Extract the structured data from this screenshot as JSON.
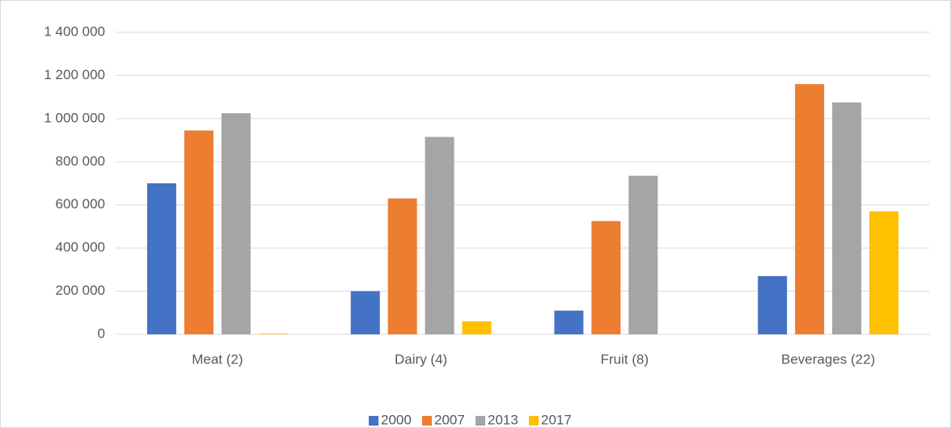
{
  "chart_data": {
    "type": "bar",
    "categories": [
      "Meat (2)",
      "Dairy (4)",
      "Fruit (8)",
      "Beverages (22)"
    ],
    "series": [
      {
        "name": "2000",
        "color": "#4472c4",
        "values": [
          700000,
          200000,
          110000,
          270000
        ]
      },
      {
        "name": "2007",
        "color": "#ed7d31",
        "values": [
          945000,
          630000,
          525000,
          1160000
        ]
      },
      {
        "name": "2013",
        "color": "#a5a5a5",
        "values": [
          1025000,
          915000,
          735000,
          1075000
        ]
      },
      {
        "name": "2017",
        "color": "#ffc000",
        "values": [
          3000,
          60000,
          0,
          570000
        ]
      }
    ],
    "ylim": [
      0,
      1400000
    ],
    "yticks": [
      0,
      {
        "value": 200000,
        "label": "200 000"
      },
      {
        "value": 400000,
        "label": "400 000"
      },
      {
        "value": 600000,
        "label": "600 000"
      },
      {
        "value": 800000,
        "label": "800 000"
      },
      {
        "value": 1000000,
        "label": "1 000 000"
      },
      {
        "value": 1200000,
        "label": "1 200 000"
      },
      {
        "value": 1400000,
        "label": "1 400 000"
      }
    ],
    "grid": true,
    "legend": "bottom"
  }
}
